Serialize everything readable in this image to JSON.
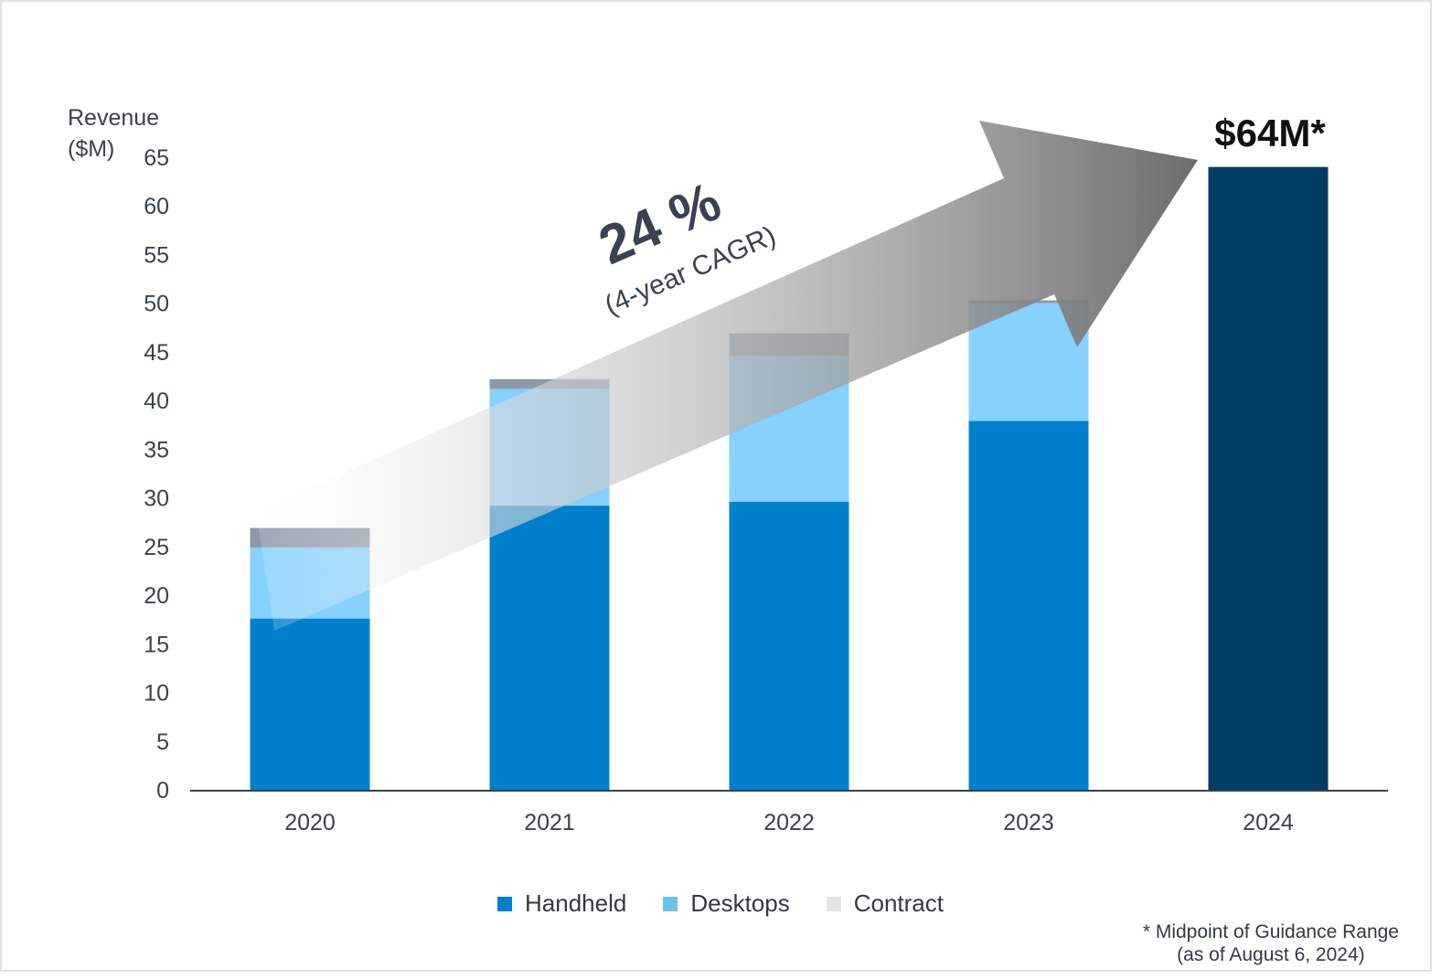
{
  "chart_data": {
    "type": "bar",
    "stacked": true,
    "categories": [
      "2020",
      "2021",
      "2022",
      "2023",
      "2024"
    ],
    "ylabel": "Revenue ($M)",
    "ylabel_lines": [
      "Revenue",
      "($M)"
    ],
    "ylim": [
      0,
      65
    ],
    "yticks": [
      0,
      5,
      10,
      15,
      20,
      25,
      30,
      35,
      40,
      45,
      50,
      55,
      60,
      65
    ],
    "series": [
      {
        "name": "Handheld",
        "color": "#0080cc",
        "values": [
          17.6,
          29.2,
          29.6,
          37.9,
          null
        ]
      },
      {
        "name": "Desktops",
        "color": "#86d1ff",
        "values": [
          7.3,
          12.0,
          15.0,
          12.1,
          null
        ]
      },
      {
        "name": "Contract",
        "color": "#8e98a8",
        "values": [
          2.0,
          1.0,
          2.3,
          0.3,
          null
        ]
      }
    ],
    "totals": {
      "2024": 64
    },
    "total_color": "#003d62",
    "grid": false,
    "legend_position": "bottom",
    "legend_swatch_colors": [
      "#0080cc",
      "#6cc3e6",
      "#e4e4e4"
    ],
    "annotations": {
      "bar_2024_label": "$64M*",
      "cagr_value": "24 %",
      "cagr_caption": "(4-year CAGR)"
    },
    "footnote": [
      "* Midpoint of Guidance Range",
      "(as of August 6, 2024)"
    ]
  }
}
